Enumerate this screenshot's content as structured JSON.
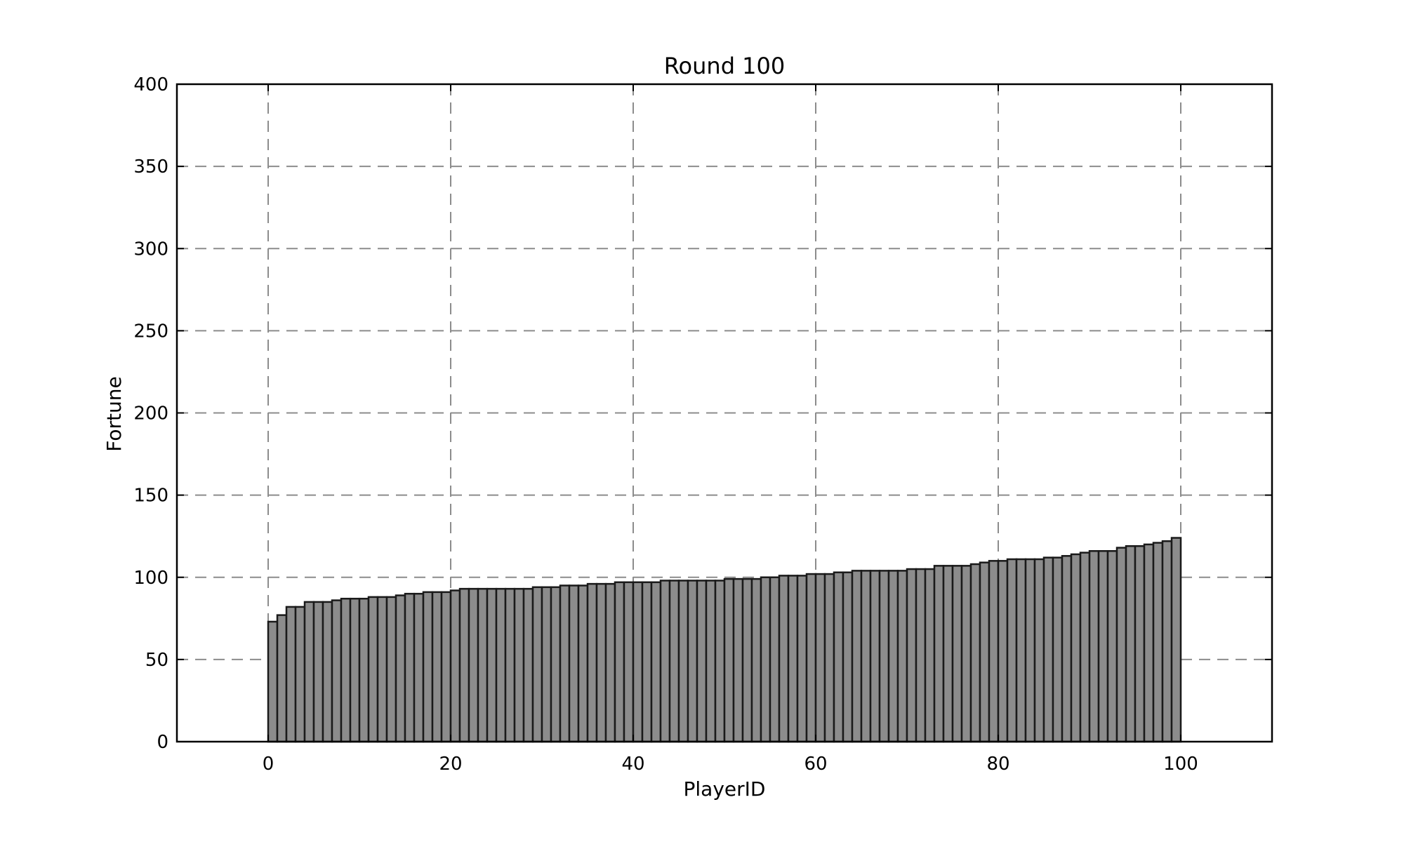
{
  "chart_data": {
    "type": "bar",
    "title": "Round 100",
    "xlabel": "PlayerID",
    "ylabel": "Fortune",
    "xlim": [
      -10,
      110
    ],
    "ylim": [
      0,
      400
    ],
    "xticks": [
      0,
      20,
      40,
      60,
      80,
      100
    ],
    "yticks": [
      0,
      50,
      100,
      150,
      200,
      250,
      300,
      350,
      400
    ],
    "grid": true,
    "bar_color": "#8c8c8c",
    "edge_color": "#1a1a1a",
    "bar_width": 1,
    "x": [
      0,
      1,
      2,
      3,
      4,
      5,
      6,
      7,
      8,
      9,
      10,
      11,
      12,
      13,
      14,
      15,
      16,
      17,
      18,
      19,
      20,
      21,
      22,
      23,
      24,
      25,
      26,
      27,
      28,
      29,
      30,
      31,
      32,
      33,
      34,
      35,
      36,
      37,
      38,
      39,
      40,
      41,
      42,
      43,
      44,
      45,
      46,
      47,
      48,
      49,
      50,
      51,
      52,
      53,
      54,
      55,
      56,
      57,
      58,
      59,
      60,
      61,
      62,
      63,
      64,
      65,
      66,
      67,
      68,
      69,
      70,
      71,
      72,
      73,
      74,
      75,
      76,
      77,
      78,
      79,
      80,
      81,
      82,
      83,
      84,
      85,
      86,
      87,
      88,
      89,
      90,
      91,
      92,
      93,
      94,
      95,
      96,
      97,
      98,
      99
    ],
    "values": [
      73,
      77,
      82,
      82,
      85,
      85,
      85,
      86,
      87,
      87,
      87,
      88,
      88,
      88,
      89,
      90,
      90,
      91,
      91,
      91,
      92,
      93,
      93,
      93,
      93,
      93,
      93,
      93,
      93,
      94,
      94,
      94,
      95,
      95,
      95,
      96,
      96,
      96,
      97,
      97,
      97,
      97,
      97,
      98,
      98,
      98,
      98,
      98,
      98,
      98,
      99,
      99,
      99,
      99,
      100,
      100,
      101,
      101,
      101,
      102,
      102,
      102,
      103,
      103,
      104,
      104,
      104,
      104,
      104,
      104,
      105,
      105,
      105,
      107,
      107,
      107,
      107,
      108,
      109,
      110,
      110,
      111,
      111,
      111,
      111,
      112,
      112,
      113,
      114,
      115,
      116,
      116,
      116,
      118,
      119,
      119,
      120,
      121,
      122,
      124
    ]
  }
}
